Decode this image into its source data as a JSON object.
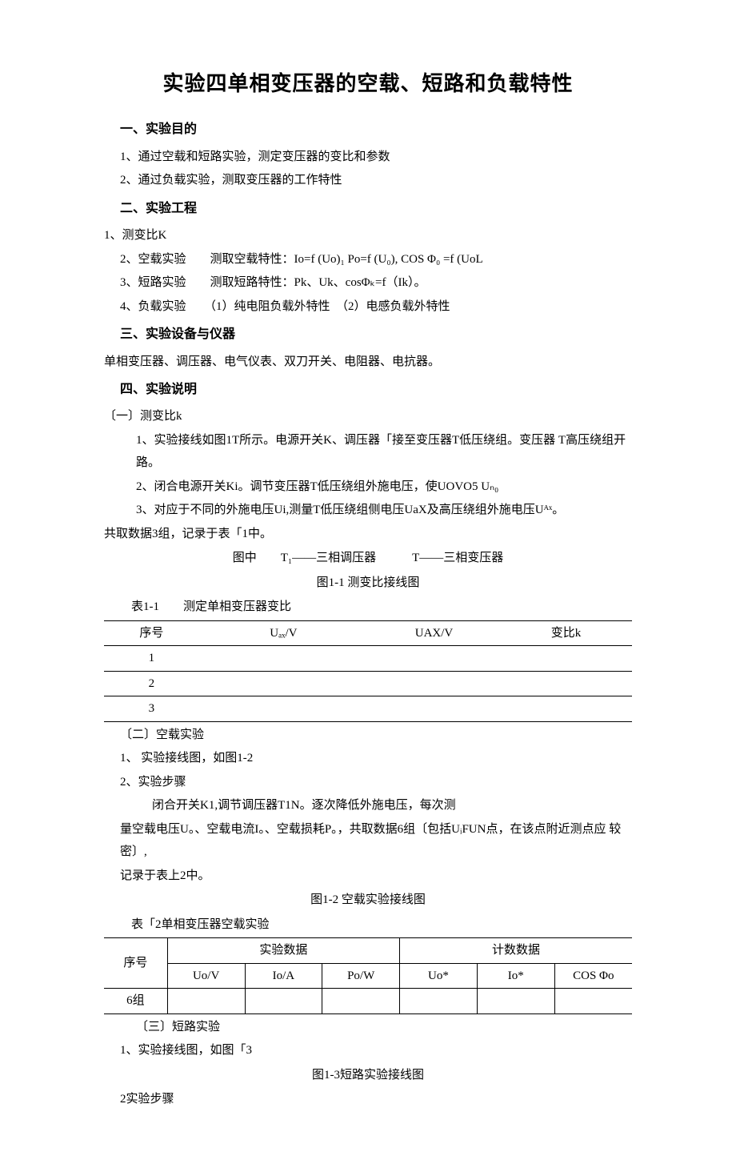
{
  "title": "实验四单相变压器的空载、短路和负载特性",
  "s1": {
    "heading": "一、实验目的",
    "items": [
      "1、通过空载和短路实验，测定变压器的变比和参数",
      "2、通过负载实验，测取变压器的工作特性"
    ]
  },
  "s2": {
    "heading": "二、实验工程",
    "items": [
      "1、测变比K",
      "2、空载实验　　测取空载特性：Io=f (Uo)₁ Po=f (U₀), COS Φ₀ =f (UoL",
      "3、短路实验　　测取短路特性：Pk、Uk、cosΦₖ=f（Ik）。",
      "4、负载实验　　（1）纯电阻负载外特性　（2）电感负载外特性"
    ]
  },
  "s3": {
    "heading": "三、实验设备与仪器",
    "body": "单相变压器、调压器、电气仪表、双刀开关、电阻器、电抗器。"
  },
  "s4": {
    "heading": "四、实验说明",
    "part1": {
      "title": "〔一〕测变比k",
      "items": [
        "1、实验接线如图1T所示。电源开关K、调压器「接至变压器T低压绕组。变压器 T高压绕组开路。",
        "2、闭合电源开关Ki。调节变压器T低压绕组外施电压，使UOVO5 Uₙ₀",
        "3、对应于不同的外施电压Ui,测量T低压绕组侧电压UaX及高压绕组外施电压Uᴬˣ。"
      ],
      "note": "共取数据3组，记录于表「1中。",
      "fig_legend": "图中　　T₁——三相调压器　　　T——三相变压器",
      "fig_caption": "图1-1 测变比接线图",
      "table_caption": "表1-1　　测定单相变压器变比",
      "table": {
        "headers": [
          "序号",
          "Uₐₓ/V",
          "UAX/V",
          "变比k"
        ],
        "rows": [
          [
            "1",
            "",
            "",
            ""
          ],
          [
            "2",
            "",
            "",
            ""
          ],
          [
            "3",
            "",
            "",
            ""
          ]
        ],
        "col_widths": [
          "18%",
          "32%",
          "25%",
          "25%"
        ]
      }
    },
    "part2": {
      "title": "〔二〕空载实验",
      "items": [
        "1、 实验接线图，如图1-2",
        "2、实验步骤"
      ],
      "body1": "闭合开关K1,调节调压器T1N。逐次降低外施电压，每次测",
      "body2": "量空载电压U。、空载电流I。、空载损耗P。，共取数据6组〔包括UᵢFUN点，在该点附近测点应 较密〕,",
      "body3": "记录于表上2中。",
      "fig_caption": "图1-2 空载实验接线图",
      "table_caption": "表「2单相变压器空载实验",
      "table": {
        "group1": "实验数据",
        "group2": "计数数据",
        "col0": "序号",
        "cols": [
          "Uo/V",
          "Io/A",
          "Po/W",
          "Uo*",
          "Io*",
          "COS Φo"
        ],
        "row_label": "6组",
        "col0_width": "12%",
        "col_width": "14.66%"
      }
    },
    "part3": {
      "title": "〔三〕短路实验",
      "items": [
        "1、实验接线图，如图「3"
      ],
      "fig_caption": "图1-3短路实验接线图",
      "step": "2实验步骤"
    }
  }
}
